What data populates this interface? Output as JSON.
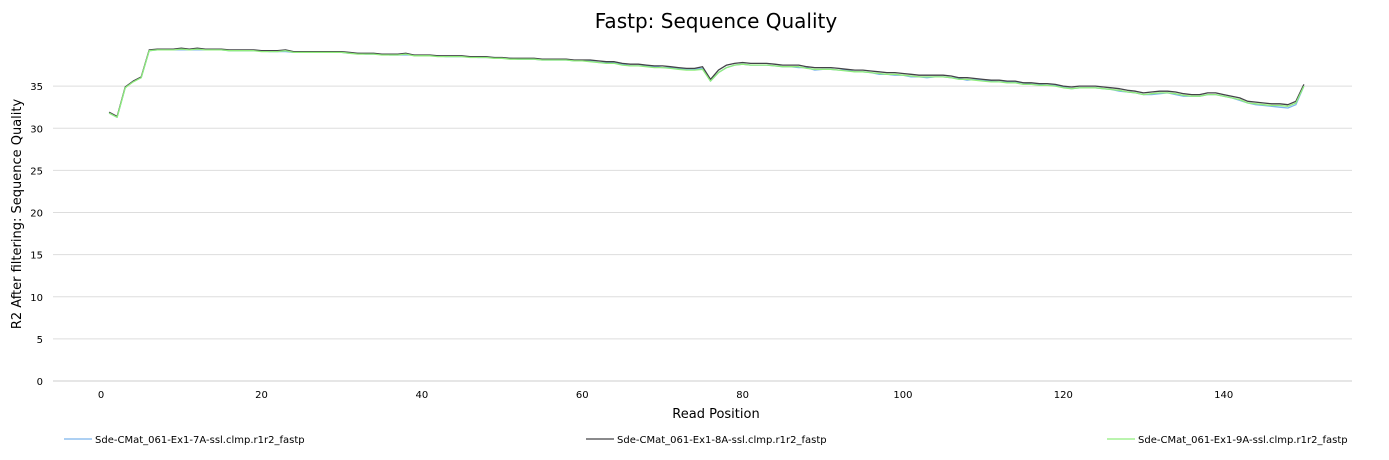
{
  "chart_data": {
    "type": "line",
    "title": "Fastp: Sequence Quality",
    "xlabel": "Read Position",
    "ylabel": "R2 After filtering: Sequence Quality",
    "xlim": [
      -6,
      156
    ],
    "ylim": [
      0,
      40
    ],
    "xticks": [
      0,
      20,
      40,
      60,
      80,
      100,
      120,
      140
    ],
    "yticks": [
      0,
      5,
      10,
      15,
      20,
      25,
      30,
      35
    ],
    "grid": true,
    "legend_position": "bottom",
    "x": [
      1,
      2,
      3,
      4,
      5,
      6,
      7,
      8,
      9,
      10,
      11,
      12,
      13,
      14,
      15,
      16,
      17,
      18,
      19,
      20,
      21,
      22,
      23,
      24,
      25,
      26,
      27,
      28,
      29,
      30,
      31,
      32,
      33,
      34,
      35,
      36,
      37,
      38,
      39,
      40,
      41,
      42,
      43,
      44,
      45,
      46,
      47,
      48,
      49,
      50,
      51,
      52,
      53,
      54,
      55,
      56,
      57,
      58,
      59,
      60,
      61,
      62,
      63,
      64,
      65,
      66,
      67,
      68,
      69,
      70,
      71,
      72,
      73,
      74,
      75,
      76,
      77,
      78,
      79,
      80,
      81,
      82,
      83,
      84,
      85,
      86,
      87,
      88,
      89,
      90,
      91,
      92,
      93,
      94,
      95,
      96,
      97,
      98,
      99,
      100,
      101,
      102,
      103,
      104,
      105,
      106,
      107,
      108,
      109,
      110,
      111,
      112,
      113,
      114,
      115,
      116,
      117,
      118,
      119,
      120,
      121,
      122,
      123,
      124,
      125,
      126,
      127,
      128,
      129,
      130,
      131,
      132,
      133,
      134,
      135,
      136,
      137,
      138,
      139,
      140,
      141,
      142,
      143,
      144,
      145,
      146,
      147,
      148,
      149,
      150
    ],
    "series": [
      {
        "name": "Sde-CMat_061-Ex1-7A-ssl.clmp.r1r2_fastp",
        "color": "#7cb5ec",
        "values": [
          31.8,
          31.3,
          34.8,
          35.6,
          36.0,
          39.2,
          39.3,
          39.3,
          39.3,
          39.3,
          39.3,
          39.3,
          39.3,
          39.3,
          39.3,
          39.2,
          39.2,
          39.2,
          39.2,
          39.2,
          39.1,
          39.1,
          39.1,
          39.0,
          39.0,
          39.0,
          39.0,
          39.0,
          39.0,
          39.0,
          38.9,
          38.9,
          38.8,
          38.8,
          38.8,
          38.7,
          38.7,
          38.7,
          38.7,
          38.6,
          38.6,
          38.6,
          38.5,
          38.5,
          38.5,
          38.5,
          38.4,
          38.4,
          38.4,
          38.3,
          38.3,
          38.2,
          38.2,
          38.2,
          38.1,
          38.1,
          38.1,
          38.1,
          38.0,
          38.0,
          38.0,
          37.8,
          37.8,
          37.8,
          37.6,
          37.4,
          37.4,
          37.4,
          37.3,
          37.2,
          37.2,
          37.1,
          37.0,
          37.0,
          37.1,
          35.6,
          36.6,
          37.2,
          37.5,
          37.6,
          37.5,
          37.5,
          37.5,
          37.4,
          37.3,
          37.3,
          37.2,
          37.2,
          36.9,
          37.0,
          37.0,
          36.9,
          36.9,
          36.7,
          36.7,
          36.6,
          36.4,
          36.4,
          36.3,
          36.3,
          36.1,
          36.1,
          36.0,
          36.1,
          36.1,
          36.0,
          35.9,
          35.7,
          35.8,
          35.7,
          35.6,
          35.5,
          35.5,
          35.5,
          35.4,
          35.2,
          35.2,
          35.1,
          35.1,
          34.9,
          34.7,
          34.8,
          34.8,
          34.8,
          34.7,
          34.6,
          34.4,
          34.3,
          34.2,
          34.0,
          34.0,
          34.1,
          34.2,
          34.0,
          33.8,
          33.8,
          33.8,
          34.0,
          34.0,
          33.8,
          33.6,
          33.3,
          33.0,
          32.8,
          32.7,
          32.6,
          32.5,
          32.4,
          32.8,
          35.0
        ]
      },
      {
        "name": "Sde-CMat_061-Ex1-8A-ssl.clmp.r1r2_fastp",
        "color": "#434348",
        "values": [
          31.9,
          31.4,
          34.9,
          35.6,
          36.1,
          39.3,
          39.4,
          39.4,
          39.4,
          39.5,
          39.4,
          39.5,
          39.4,
          39.4,
          39.4,
          39.3,
          39.3,
          39.3,
          39.3,
          39.2,
          39.2,
          39.2,
          39.3,
          39.1,
          39.1,
          39.1,
          39.1,
          39.1,
          39.1,
          39.1,
          39.0,
          38.9,
          38.9,
          38.9,
          38.8,
          38.8,
          38.8,
          38.9,
          38.7,
          38.7,
          38.7,
          38.6,
          38.6,
          38.6,
          38.6,
          38.5,
          38.5,
          38.5,
          38.4,
          38.4,
          38.3,
          38.3,
          38.3,
          38.3,
          38.2,
          38.2,
          38.2,
          38.2,
          38.1,
          38.1,
          38.1,
          38.0,
          37.9,
          37.9,
          37.7,
          37.6,
          37.6,
          37.5,
          37.4,
          37.4,
          37.3,
          37.2,
          37.1,
          37.1,
          37.3,
          35.8,
          36.9,
          37.5,
          37.7,
          37.8,
          37.7,
          37.7,
          37.7,
          37.6,
          37.5,
          37.5,
          37.5,
          37.3,
          37.2,
          37.2,
          37.2,
          37.1,
          37.0,
          36.9,
          36.9,
          36.8,
          36.7,
          36.6,
          36.6,
          36.5,
          36.4,
          36.3,
          36.3,
          36.3,
          36.3,
          36.2,
          36.0,
          36.0,
          35.9,
          35.8,
          35.7,
          35.7,
          35.6,
          35.6,
          35.4,
          35.4,
          35.3,
          35.3,
          35.2,
          35.0,
          34.9,
          35.0,
          35.0,
          35.0,
          34.9,
          34.8,
          34.7,
          34.5,
          34.4,
          34.2,
          34.3,
          34.4,
          34.4,
          34.3,
          34.1,
          34.0,
          34.0,
          34.2,
          34.2,
          34.0,
          33.8,
          33.6,
          33.2,
          33.1,
          33.0,
          32.9,
          32.9,
          32.8,
          33.2,
          35.2
        ]
      },
      {
        "name": "Sde-CMat_061-Ex1-9A-ssl.clmp.r1r2_fastp",
        "color": "#90ed7d",
        "values": [
          31.8,
          31.3,
          34.8,
          35.5,
          36.0,
          39.2,
          39.3,
          39.3,
          39.3,
          39.4,
          39.3,
          39.4,
          39.3,
          39.3,
          39.3,
          39.2,
          39.2,
          39.2,
          39.2,
          39.1,
          39.1,
          39.1,
          39.2,
          39.0,
          39.0,
          39.0,
          39.0,
          39.0,
          39.0,
          39.0,
          38.9,
          38.8,
          38.8,
          38.8,
          38.7,
          38.7,
          38.7,
          38.8,
          38.6,
          38.6,
          38.6,
          38.5,
          38.5,
          38.5,
          38.5,
          38.4,
          38.4,
          38.4,
          38.3,
          38.3,
          38.2,
          38.2,
          38.2,
          38.2,
          38.1,
          38.1,
          38.1,
          38.1,
          38.0,
          38.0,
          37.9,
          37.8,
          37.7,
          37.7,
          37.5,
          37.4,
          37.4,
          37.3,
          37.2,
          37.2,
          37.1,
          37.0,
          36.9,
          36.9,
          37.0,
          35.6,
          36.6,
          37.2,
          37.5,
          37.6,
          37.5,
          37.5,
          37.5,
          37.4,
          37.3,
          37.3,
          37.3,
          37.1,
          37.0,
          37.0,
          37.0,
          36.9,
          36.8,
          36.7,
          36.7,
          36.6,
          36.5,
          36.4,
          36.4,
          36.3,
          36.2,
          36.1,
          36.1,
          36.1,
          36.1,
          36.0,
          35.8,
          35.8,
          35.7,
          35.6,
          35.5,
          35.5,
          35.4,
          35.4,
          35.2,
          35.2,
          35.1,
          35.1,
          35.0,
          34.8,
          34.7,
          34.8,
          34.8,
          34.8,
          34.7,
          34.6,
          34.5,
          34.3,
          34.2,
          34.0,
          34.1,
          34.2,
          34.2,
          34.1,
          33.9,
          33.8,
          33.8,
          34.0,
          34.0,
          33.8,
          33.6,
          33.4,
          33.0,
          32.9,
          32.8,
          32.7,
          32.7,
          32.6,
          33.0,
          35.0
        ]
      }
    ]
  }
}
